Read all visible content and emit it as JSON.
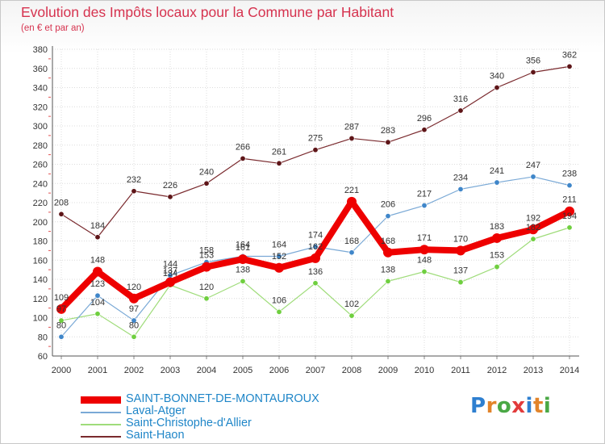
{
  "header": {
    "title": "Evolution des Impôts locaux pour la Commune par Habitant",
    "subtitle": "(en € et par an)"
  },
  "logo": {
    "text": "Proxiti",
    "letters": [
      {
        "ch": "P",
        "color": "#2e7fd0"
      },
      {
        "ch": "r",
        "color": "#e2842a"
      },
      {
        "ch": "o",
        "color": "#4aa845"
      },
      {
        "ch": "x",
        "color": "#e23b3b"
      },
      {
        "ch": "i",
        "color": "#2e7fd0"
      },
      {
        "ch": "t",
        "color": "#e2842a"
      },
      {
        "ch": "i",
        "color": "#4aa845"
      }
    ]
  },
  "chart_data": {
    "type": "line",
    "title": "Evolution des Impôts locaux pour la Commune par Habitant",
    "subtitle": "(en € et par an)",
    "xlabel": "",
    "ylabel": "",
    "x": [
      "2000",
      "2001",
      "2002",
      "2003",
      "2004",
      "2005",
      "2006",
      "2007",
      "2008",
      "2009",
      "2010",
      "2011",
      "2012",
      "2013",
      "2014"
    ],
    "ylim": [
      60,
      380
    ],
    "yticks": [
      60,
      80,
      100,
      120,
      140,
      160,
      180,
      200,
      220,
      240,
      260,
      280,
      300,
      320,
      340,
      360,
      380
    ],
    "grid": true,
    "legend_position": "bottom",
    "series": [
      {
        "name": "Saint-Haon",
        "color": "#7a2a2e",
        "marker": "#5e1518",
        "label_color": "#333333",
        "width": 1.2,
        "values": [
          208,
          184,
          232,
          226,
          240,
          266,
          261,
          275,
          287,
          283,
          296,
          316,
          340,
          356,
          362
        ]
      },
      {
        "name": "Saint-Christophe-d'Allier",
        "color": "#9fdc7a",
        "marker": "#6fcf3f",
        "label_color": "#333333",
        "width": 1.2,
        "values": [
          97,
          104,
          80,
          134,
          120,
          138,
          106,
          136,
          102,
          138,
          148,
          137,
          153,
          182,
          194
        ]
      },
      {
        "name": "Laval-Atger",
        "color": "#7aa9d6",
        "marker": "#3f86c9",
        "label_color": "#333333",
        "width": 1.2,
        "values": [
          80,
          123,
          97,
          144,
          158,
          164,
          164,
          174,
          168,
          206,
          217,
          234,
          241,
          247,
          238
        ]
      },
      {
        "name": "SAINT-BONNET-DE-MONTAUROUX",
        "color": "#ee0000",
        "marker": "#ee0000",
        "label_color": "#333333",
        "width": 8,
        "values": [
          109,
          148,
          120,
          137,
          153,
          161,
          152,
          162,
          221,
          168,
          171,
          170,
          183,
          192,
          211
        ]
      }
    ],
    "legend_order": [
      "SAINT-BONNET-DE-MONTAUROUX",
      "Laval-Atger",
      "Saint-Christophe-d'Allier",
      "Saint-Haon"
    ]
  }
}
